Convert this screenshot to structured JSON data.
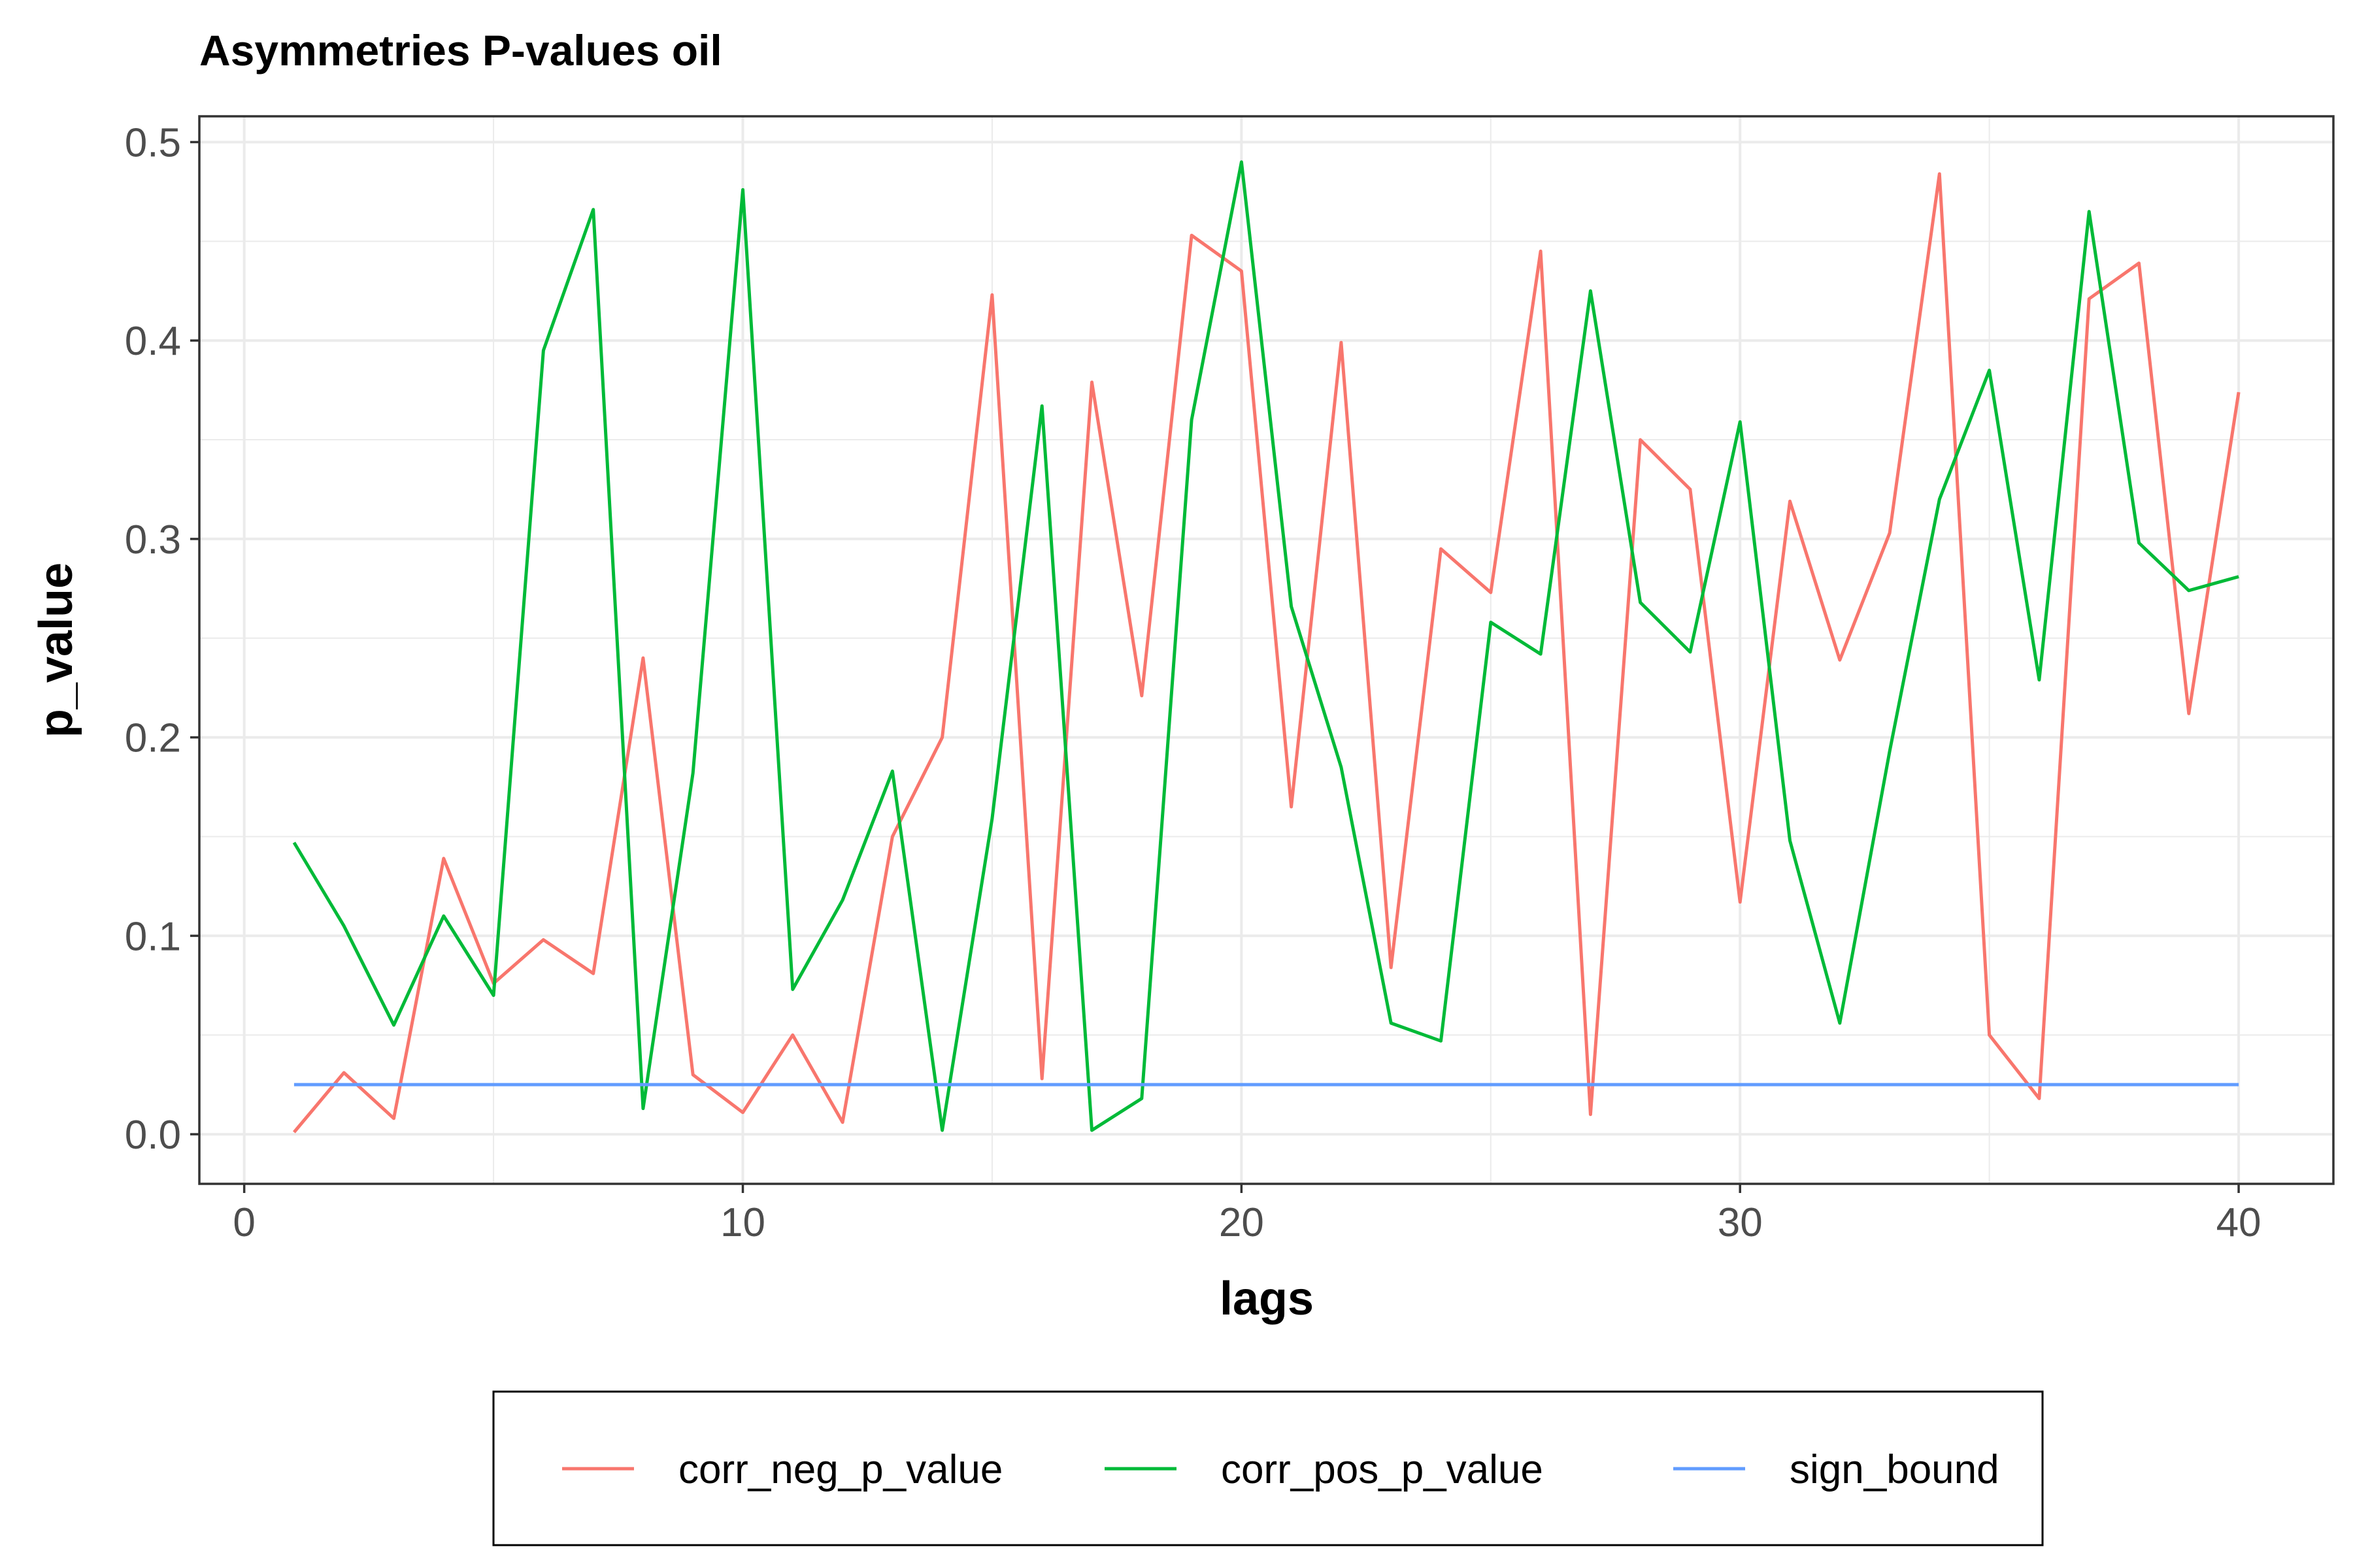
{
  "chart_data": {
    "type": "line",
    "title": "Asymmetries P-values oil",
    "xlabel": "lags",
    "ylabel": "p_value",
    "xlim": [
      -0.9,
      41.9
    ],
    "ylim": [
      -0.025,
      0.513
    ],
    "x_ticks": [
      0,
      10,
      20,
      30,
      40
    ],
    "x_tick_labels": [
      "0",
      "10",
      "20",
      "30",
      "40"
    ],
    "y_ticks": [
      0.0,
      0.1,
      0.2,
      0.3,
      0.4,
      0.5
    ],
    "y_tick_labels": [
      "0.0",
      "0.1",
      "0.2",
      "0.3",
      "0.4",
      "0.5"
    ],
    "grid": true,
    "legend_position": "bottom",
    "x": [
      1,
      2,
      3,
      4,
      5,
      6,
      7,
      8,
      9,
      10,
      11,
      12,
      13,
      14,
      15,
      16,
      17,
      18,
      19,
      20,
      21,
      22,
      23,
      24,
      25,
      26,
      27,
      28,
      29,
      30,
      31,
      32,
      33,
      34,
      35,
      36,
      37,
      38,
      39,
      40
    ],
    "series": [
      {
        "name": "corr_neg_p_value",
        "color": "#F8766D",
        "values": [
          0.001,
          0.031,
          0.008,
          0.139,
          0.076,
          0.098,
          0.081,
          0.24,
          0.03,
          0.011,
          0.05,
          0.006,
          0.15,
          0.2,
          0.423,
          0.028,
          0.379,
          0.221,
          0.453,
          0.435,
          0.165,
          0.399,
          0.084,
          0.295,
          0.273,
          0.445,
          0.01,
          0.35,
          0.325,
          0.117,
          0.319,
          0.239,
          0.303,
          0.484,
          0.05,
          0.018,
          0.421,
          0.439,
          0.212,
          0.374
        ]
      },
      {
        "name": "corr_pos_p_value",
        "color": "#00BA38",
        "values": [
          0.147,
          0.105,
          0.055,
          0.11,
          0.07,
          0.395,
          0.466,
          0.013,
          0.182,
          0.476,
          0.073,
          0.118,
          0.183,
          0.002,
          0.159,
          0.367,
          0.002,
          0.018,
          0.36,
          0.49,
          0.266,
          0.185,
          0.056,
          0.047,
          0.258,
          0.242,
          0.425,
          0.268,
          0.243,
          0.359,
          0.148,
          0.056,
          0.193,
          0.32,
          0.385,
          0.229,
          0.465,
          0.298,
          0.274,
          0.281
        ]
      },
      {
        "name": "sign_bound",
        "color": "#619CFF",
        "values": [
          0.025,
          0.025,
          0.025,
          0.025,
          0.025,
          0.025,
          0.025,
          0.025,
          0.025,
          0.025,
          0.025,
          0.025,
          0.025,
          0.025,
          0.025,
          0.025,
          0.025,
          0.025,
          0.025,
          0.025,
          0.025,
          0.025,
          0.025,
          0.025,
          0.025,
          0.025,
          0.025,
          0.025,
          0.025,
          0.025,
          0.025,
          0.025,
          0.025,
          0.025,
          0.025,
          0.025,
          0.025,
          0.025,
          0.025,
          0.025
        ]
      }
    ]
  }
}
